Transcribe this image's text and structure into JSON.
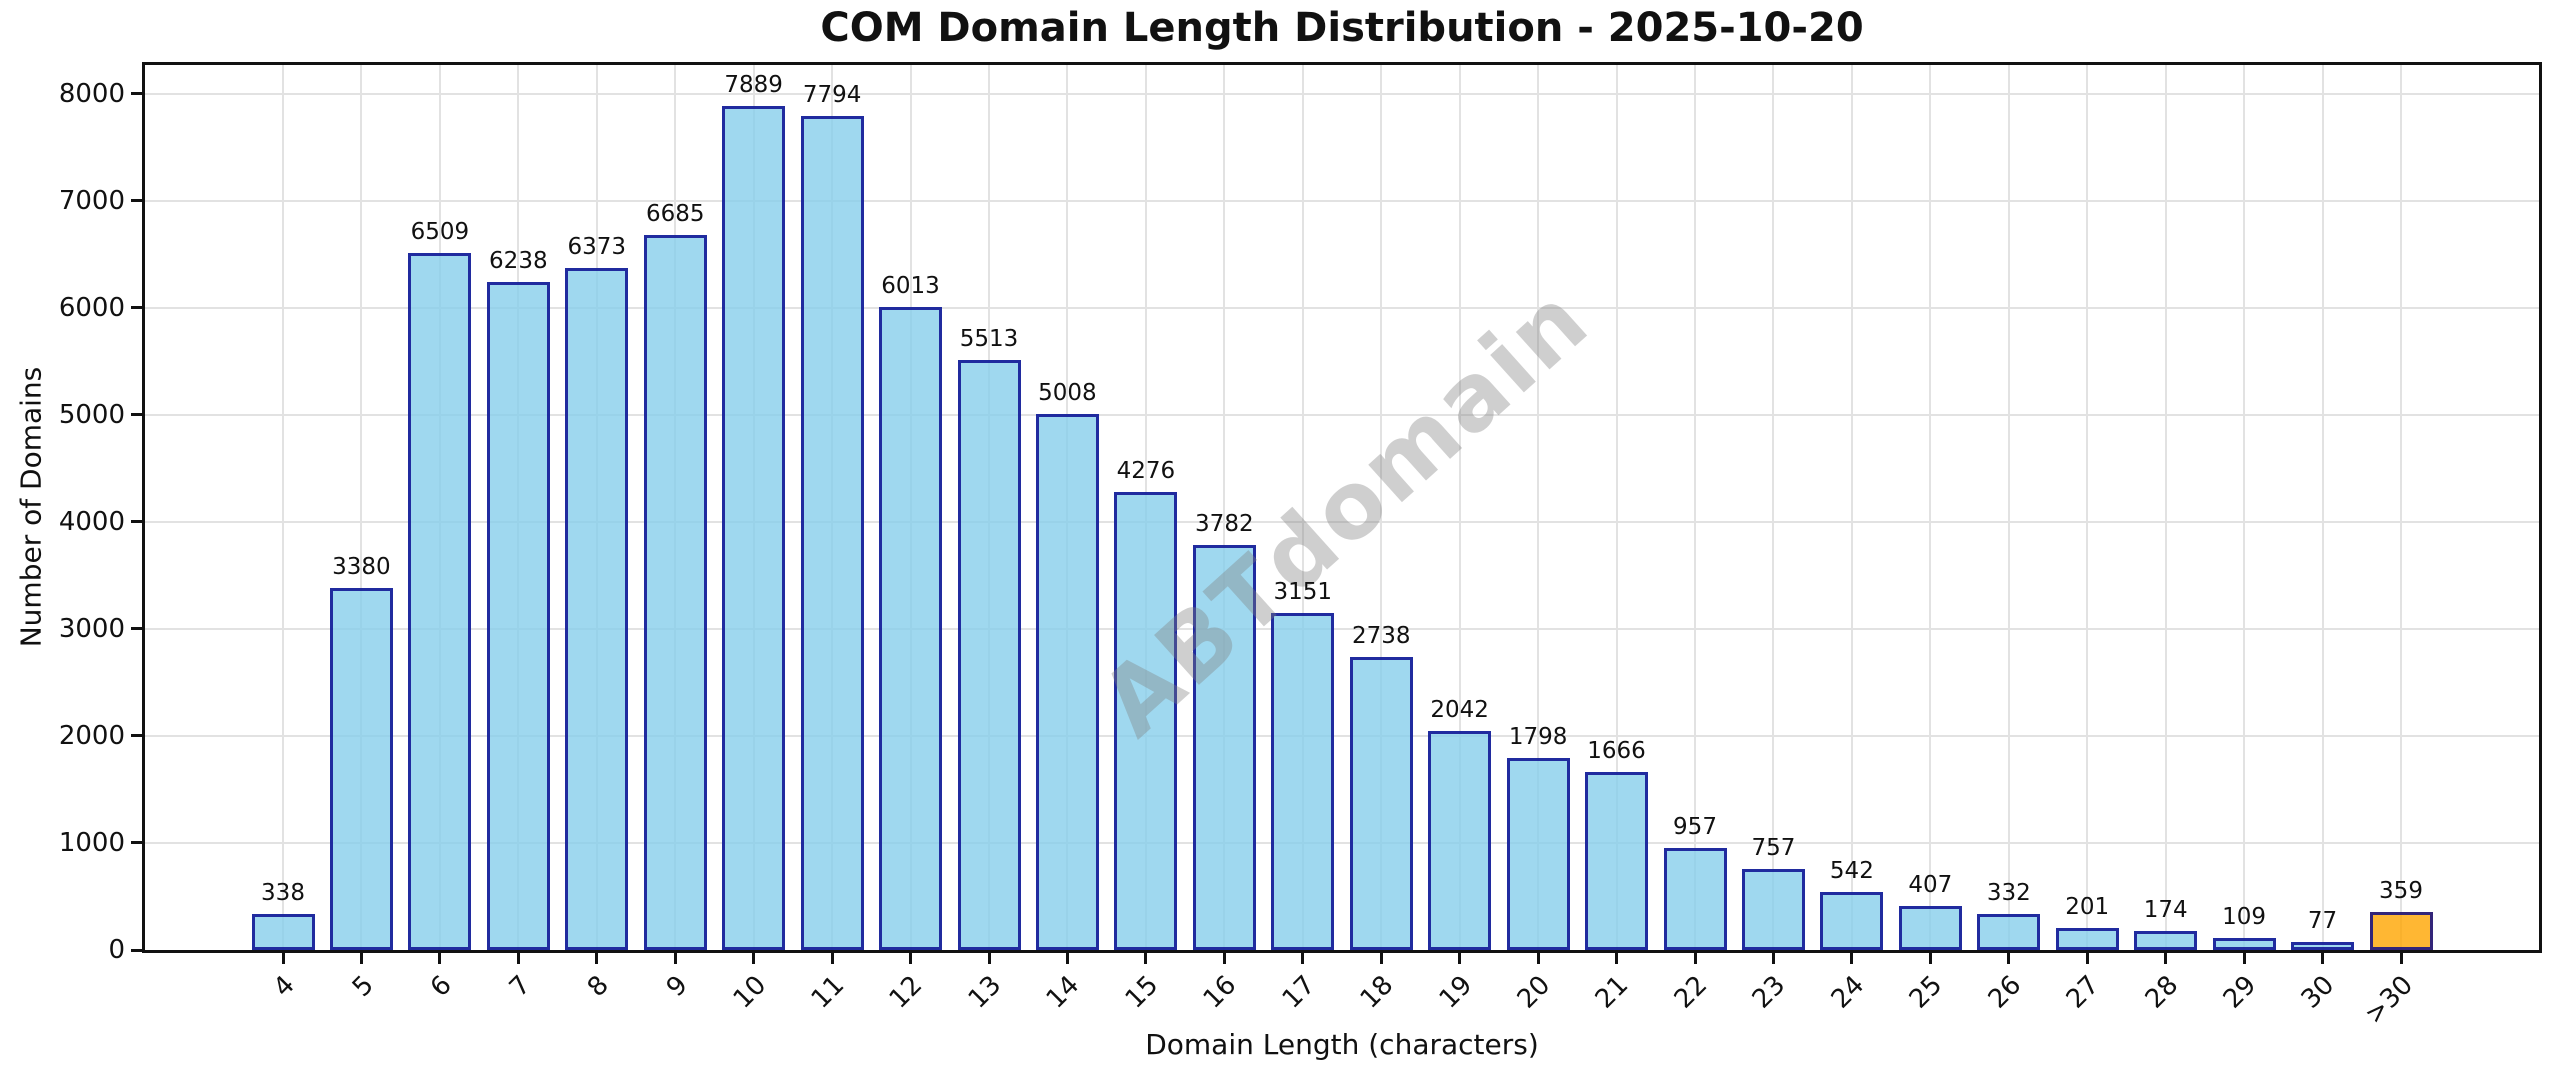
{
  "title": "COM Domain Length Distribution - 2025-10-20",
  "chart_data": {
    "type": "bar",
    "title": "COM Domain Length Distribution - 2025-10-20",
    "xlabel": "Domain Length (characters)",
    "ylabel": "Number of Domains",
    "categories": [
      "4",
      "5",
      "6",
      "7",
      "8",
      "9",
      "10",
      "11",
      "12",
      "13",
      "14",
      "15",
      "16",
      "17",
      "18",
      "19",
      "20",
      "21",
      "22",
      "23",
      "24",
      "25",
      "26",
      "27",
      "28",
      "29",
      "30",
      ">30"
    ],
    "values": [
      338,
      3380,
      6509,
      6238,
      6373,
      6685,
      7889,
      7794,
      6013,
      5513,
      5008,
      4276,
      3782,
      3151,
      2738,
      2042,
      1798,
      1666,
      957,
      757,
      542,
      407,
      332,
      201,
      174,
      109,
      77,
      359
    ],
    "bar_value_labels_shown": true,
    "ylim": [
      0,
      8270
    ],
    "yticks": [
      0,
      1000,
      2000,
      3000,
      4000,
      5000,
      6000,
      7000,
      8000
    ],
    "grid": true,
    "legend_position": "none",
    "highlight_category": ">30",
    "watermark": "ABTdomain",
    "colors": {
      "bar_fill": "#87CEEB",
      "bar_fill_highlight": "#FFA500",
      "bar_edge": "#00008B",
      "bar_alpha": 0.8,
      "grid_line": "#E2E2E2",
      "spine": "#111111",
      "text": "#111111",
      "watermark": "#808080"
    }
  }
}
